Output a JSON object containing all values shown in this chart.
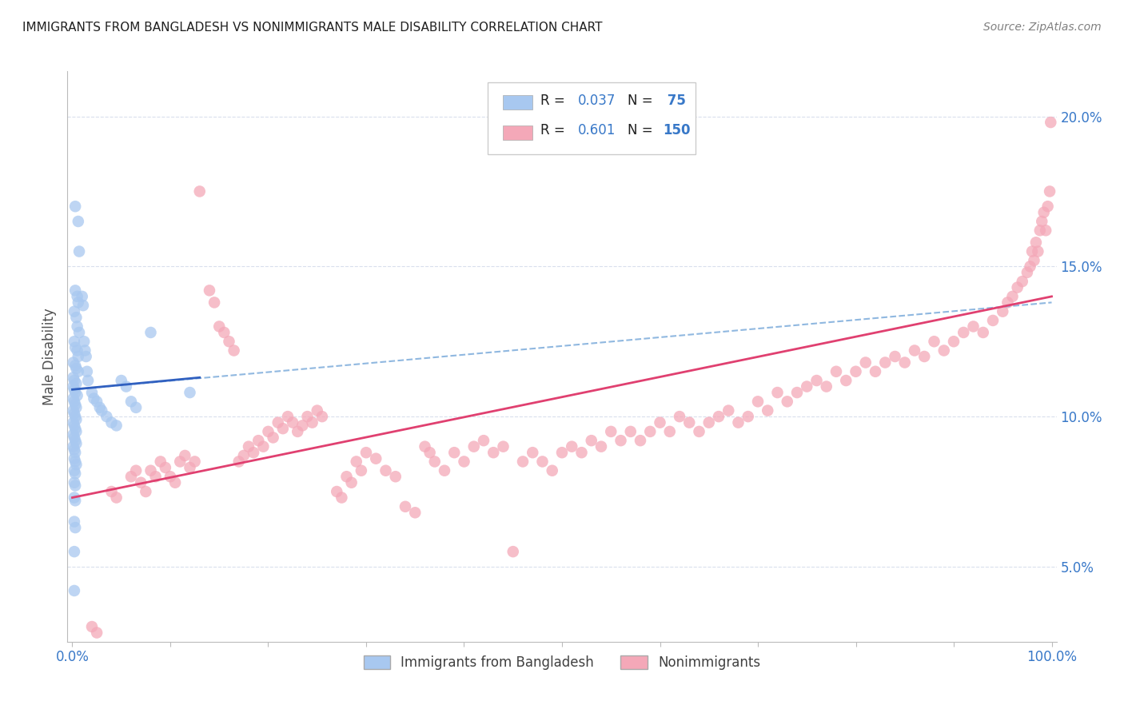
{
  "title": "IMMIGRANTS FROM BANGLADESH VS NONIMMIGRANTS MALE DISABILITY CORRELATION CHART",
  "source": "Source: ZipAtlas.com",
  "ylabel": "Male Disability",
  "right_yticks": [
    "5.0%",
    "10.0%",
    "15.0%",
    "20.0%"
  ],
  "right_ytick_vals": [
    0.05,
    0.1,
    0.15,
    0.2
  ],
  "xlim": [
    -0.005,
    1.005
  ],
  "ylim": [
    0.025,
    0.215
  ],
  "legend": {
    "blue_R": "0.037",
    "blue_N": "75",
    "pink_R": "0.601",
    "pink_N": "150"
  },
  "blue_color": "#a8c8f0",
  "pink_color": "#f4a8b8",
  "blue_line_color": "#3060c0",
  "pink_line_color": "#e04070",
  "blue_dash_color": "#90b8e0",
  "grid_color": "#d0d8e8",
  "title_color": "#202020",
  "source_color": "#808080",
  "label_color": "#3878c8",
  "blue_points": [
    [
      0.003,
      0.17
    ],
    [
      0.006,
      0.165
    ],
    [
      0.003,
      0.142
    ],
    [
      0.005,
      0.14
    ],
    [
      0.006,
      0.138
    ],
    [
      0.002,
      0.135
    ],
    [
      0.004,
      0.133
    ],
    [
      0.005,
      0.13
    ],
    [
      0.007,
      0.128
    ],
    [
      0.002,
      0.125
    ],
    [
      0.003,
      0.123
    ],
    [
      0.005,
      0.122
    ],
    [
      0.006,
      0.12
    ],
    [
      0.001,
      0.118
    ],
    [
      0.003,
      0.117
    ],
    [
      0.004,
      0.116
    ],
    [
      0.006,
      0.115
    ],
    [
      0.001,
      0.113
    ],
    [
      0.002,
      0.112
    ],
    [
      0.004,
      0.111
    ],
    [
      0.001,
      0.11
    ],
    [
      0.002,
      0.109
    ],
    [
      0.003,
      0.108
    ],
    [
      0.005,
      0.107
    ],
    [
      0.001,
      0.106
    ],
    [
      0.002,
      0.105
    ],
    [
      0.003,
      0.104
    ],
    [
      0.004,
      0.103
    ],
    [
      0.001,
      0.102
    ],
    [
      0.002,
      0.101
    ],
    [
      0.003,
      0.1
    ],
    [
      0.004,
      0.099
    ],
    [
      0.001,
      0.098
    ],
    [
      0.002,
      0.097
    ],
    [
      0.003,
      0.096
    ],
    [
      0.004,
      0.095
    ],
    [
      0.001,
      0.094
    ],
    [
      0.002,
      0.093
    ],
    [
      0.003,
      0.092
    ],
    [
      0.004,
      0.091
    ],
    [
      0.001,
      0.09
    ],
    [
      0.002,
      0.089
    ],
    [
      0.003,
      0.088
    ],
    [
      0.002,
      0.086
    ],
    [
      0.003,
      0.085
    ],
    [
      0.004,
      0.084
    ],
    [
      0.002,
      0.082
    ],
    [
      0.003,
      0.081
    ],
    [
      0.002,
      0.078
    ],
    [
      0.003,
      0.077
    ],
    [
      0.002,
      0.073
    ],
    [
      0.003,
      0.072
    ],
    [
      0.002,
      0.065
    ],
    [
      0.003,
      0.063
    ],
    [
      0.002,
      0.055
    ],
    [
      0.002,
      0.042
    ],
    [
      0.007,
      0.155
    ],
    [
      0.01,
      0.14
    ],
    [
      0.011,
      0.137
    ],
    [
      0.012,
      0.125
    ],
    [
      0.013,
      0.122
    ],
    [
      0.014,
      0.12
    ],
    [
      0.015,
      0.115
    ],
    [
      0.016,
      0.112
    ],
    [
      0.02,
      0.108
    ],
    [
      0.022,
      0.106
    ],
    [
      0.025,
      0.105
    ],
    [
      0.028,
      0.103
    ],
    [
      0.03,
      0.102
    ],
    [
      0.035,
      0.1
    ],
    [
      0.04,
      0.098
    ],
    [
      0.045,
      0.097
    ],
    [
      0.05,
      0.112
    ],
    [
      0.055,
      0.11
    ],
    [
      0.06,
      0.105
    ],
    [
      0.065,
      0.103
    ],
    [
      0.08,
      0.128
    ],
    [
      0.12,
      0.108
    ]
  ],
  "pink_points": [
    [
      0.005,
      0.02
    ],
    [
      0.008,
      0.02
    ],
    [
      0.02,
      0.03
    ],
    [
      0.025,
      0.028
    ],
    [
      0.04,
      0.075
    ],
    [
      0.045,
      0.073
    ],
    [
      0.06,
      0.08
    ],
    [
      0.065,
      0.082
    ],
    [
      0.07,
      0.078
    ],
    [
      0.075,
      0.075
    ],
    [
      0.08,
      0.082
    ],
    [
      0.085,
      0.08
    ],
    [
      0.09,
      0.085
    ],
    [
      0.095,
      0.083
    ],
    [
      0.1,
      0.08
    ],
    [
      0.105,
      0.078
    ],
    [
      0.11,
      0.085
    ],
    [
      0.115,
      0.087
    ],
    [
      0.12,
      0.083
    ],
    [
      0.125,
      0.085
    ],
    [
      0.13,
      0.175
    ],
    [
      0.14,
      0.142
    ],
    [
      0.145,
      0.138
    ],
    [
      0.15,
      0.13
    ],
    [
      0.155,
      0.128
    ],
    [
      0.16,
      0.125
    ],
    [
      0.165,
      0.122
    ],
    [
      0.17,
      0.085
    ],
    [
      0.175,
      0.087
    ],
    [
      0.18,
      0.09
    ],
    [
      0.185,
      0.088
    ],
    [
      0.19,
      0.092
    ],
    [
      0.195,
      0.09
    ],
    [
      0.2,
      0.095
    ],
    [
      0.205,
      0.093
    ],
    [
      0.21,
      0.098
    ],
    [
      0.215,
      0.096
    ],
    [
      0.22,
      0.1
    ],
    [
      0.225,
      0.098
    ],
    [
      0.23,
      0.095
    ],
    [
      0.235,
      0.097
    ],
    [
      0.24,
      0.1
    ],
    [
      0.245,
      0.098
    ],
    [
      0.25,
      0.102
    ],
    [
      0.255,
      0.1
    ],
    [
      0.27,
      0.075
    ],
    [
      0.275,
      0.073
    ],
    [
      0.28,
      0.08
    ],
    [
      0.285,
      0.078
    ],
    [
      0.29,
      0.085
    ],
    [
      0.295,
      0.082
    ],
    [
      0.3,
      0.088
    ],
    [
      0.31,
      0.086
    ],
    [
      0.32,
      0.082
    ],
    [
      0.33,
      0.08
    ],
    [
      0.34,
      0.07
    ],
    [
      0.35,
      0.068
    ],
    [
      0.36,
      0.09
    ],
    [
      0.365,
      0.088
    ],
    [
      0.37,
      0.085
    ],
    [
      0.38,
      0.082
    ],
    [
      0.39,
      0.088
    ],
    [
      0.4,
      0.085
    ],
    [
      0.41,
      0.09
    ],
    [
      0.42,
      0.092
    ],
    [
      0.43,
      0.088
    ],
    [
      0.44,
      0.09
    ],
    [
      0.45,
      0.055
    ],
    [
      0.46,
      0.085
    ],
    [
      0.47,
      0.088
    ],
    [
      0.48,
      0.085
    ],
    [
      0.49,
      0.082
    ],
    [
      0.5,
      0.088
    ],
    [
      0.51,
      0.09
    ],
    [
      0.52,
      0.088
    ],
    [
      0.53,
      0.092
    ],
    [
      0.54,
      0.09
    ],
    [
      0.55,
      0.095
    ],
    [
      0.56,
      0.092
    ],
    [
      0.57,
      0.095
    ],
    [
      0.58,
      0.092
    ],
    [
      0.59,
      0.095
    ],
    [
      0.6,
      0.098
    ],
    [
      0.61,
      0.095
    ],
    [
      0.62,
      0.1
    ],
    [
      0.63,
      0.098
    ],
    [
      0.64,
      0.095
    ],
    [
      0.65,
      0.098
    ],
    [
      0.66,
      0.1
    ],
    [
      0.67,
      0.102
    ],
    [
      0.68,
      0.098
    ],
    [
      0.69,
      0.1
    ],
    [
      0.7,
      0.105
    ],
    [
      0.71,
      0.102
    ],
    [
      0.72,
      0.108
    ],
    [
      0.73,
      0.105
    ],
    [
      0.74,
      0.108
    ],
    [
      0.75,
      0.11
    ],
    [
      0.76,
      0.112
    ],
    [
      0.77,
      0.11
    ],
    [
      0.78,
      0.115
    ],
    [
      0.79,
      0.112
    ],
    [
      0.8,
      0.115
    ],
    [
      0.81,
      0.118
    ],
    [
      0.82,
      0.115
    ],
    [
      0.83,
      0.118
    ],
    [
      0.84,
      0.12
    ],
    [
      0.85,
      0.118
    ],
    [
      0.86,
      0.122
    ],
    [
      0.87,
      0.12
    ],
    [
      0.88,
      0.125
    ],
    [
      0.89,
      0.122
    ],
    [
      0.9,
      0.125
    ],
    [
      0.91,
      0.128
    ],
    [
      0.92,
      0.13
    ],
    [
      0.93,
      0.128
    ],
    [
      0.94,
      0.132
    ],
    [
      0.95,
      0.135
    ],
    [
      0.955,
      0.138
    ],
    [
      0.96,
      0.14
    ],
    [
      0.965,
      0.143
    ],
    [
      0.97,
      0.145
    ],
    [
      0.975,
      0.148
    ],
    [
      0.978,
      0.15
    ],
    [
      0.98,
      0.155
    ],
    [
      0.982,
      0.152
    ],
    [
      0.984,
      0.158
    ],
    [
      0.986,
      0.155
    ],
    [
      0.988,
      0.162
    ],
    [
      0.99,
      0.165
    ],
    [
      0.992,
      0.168
    ],
    [
      0.994,
      0.162
    ],
    [
      0.996,
      0.17
    ],
    [
      0.998,
      0.175
    ],
    [
      0.999,
      0.198
    ]
  ],
  "blue_line": {
    "x0": 0.0,
    "x1": 0.13,
    "y0": 0.109,
    "y1": 0.113
  },
  "blue_dash_line": {
    "x0": 0.0,
    "x1": 1.0,
    "y0": 0.109,
    "y1": 0.138
  },
  "pink_line": {
    "x0": 0.0,
    "x1": 1.0,
    "y0": 0.073,
    "y1": 0.14
  }
}
